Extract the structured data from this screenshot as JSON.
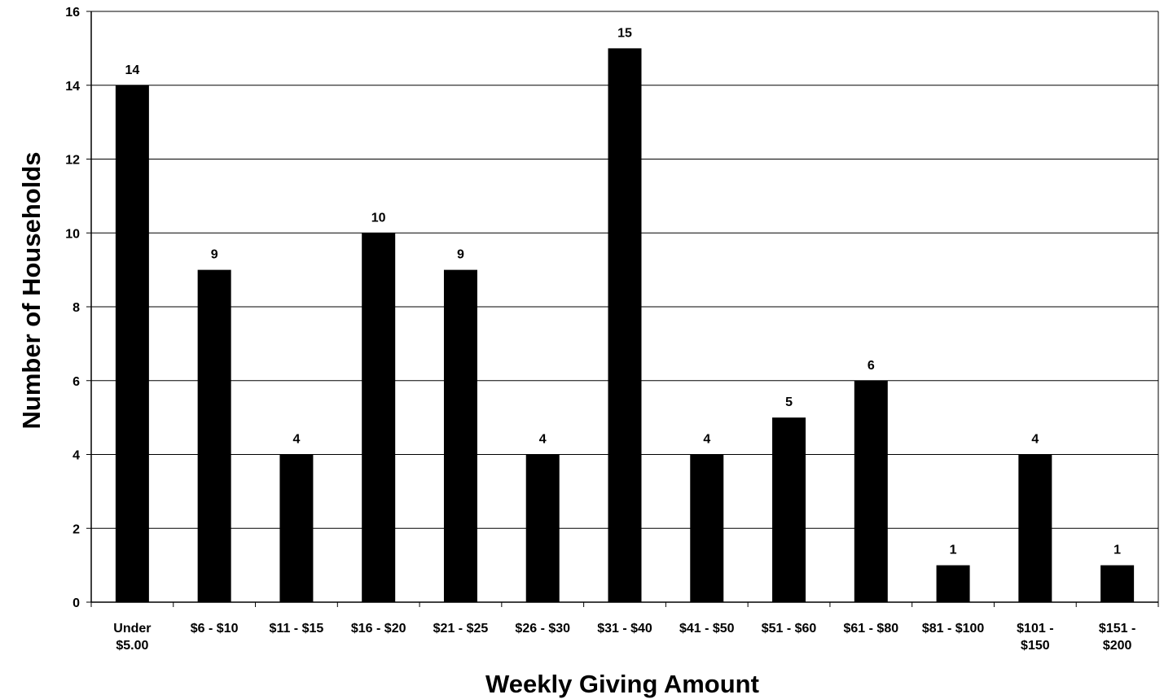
{
  "chart_data": {
    "type": "bar",
    "categories": [
      [
        "Under",
        "$5.00"
      ],
      [
        "$6 - $10"
      ],
      [
        "$11 - $15"
      ],
      [
        "$16 - $20"
      ],
      [
        "$21 - $25"
      ],
      [
        "$26 - $30"
      ],
      [
        "$31 - $40"
      ],
      [
        "$41 - $50"
      ],
      [
        "$51 - $60"
      ],
      [
        "$61 - $80"
      ],
      [
        "$81 - $100"
      ],
      [
        "$101 -",
        "$150"
      ],
      [
        "$151 -",
        "$200"
      ]
    ],
    "values": [
      14,
      9,
      4,
      10,
      9,
      4,
      15,
      4,
      5,
      6,
      1,
      4,
      1
    ],
    "xlabel": "Weekly Giving Amount",
    "ylabel": "Number of Households",
    "ylim": [
      0,
      16
    ],
    "yticks": [
      0,
      2,
      4,
      6,
      8,
      10,
      12,
      14,
      16
    ],
    "data_labels": true,
    "grid": "horizontal",
    "legend": "none",
    "bar_color": "#000000",
    "grid_color": "#000000"
  }
}
